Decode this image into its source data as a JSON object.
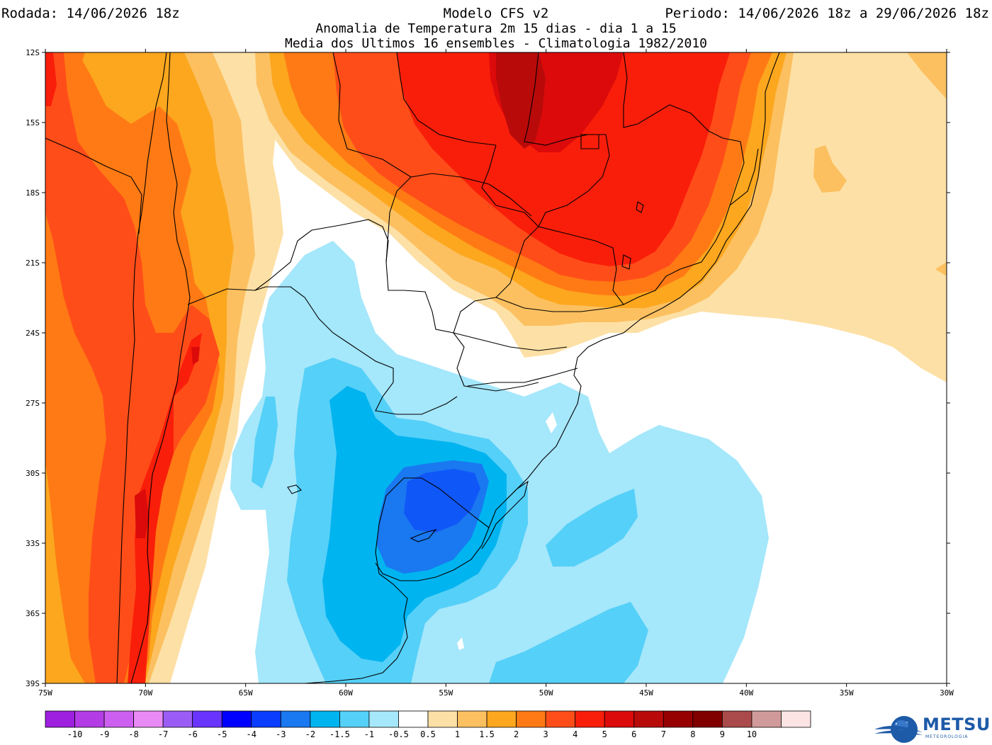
{
  "header": {
    "run": "Rodada: 14/06/2026 18z",
    "model": "Modelo CFS v2",
    "period": "Periodo: 14/06/2026 18z a 29/06/2026 18z",
    "subtitle1": "Anomalia de Temperatura 2m 15 dias - dia 1 a 15",
    "subtitle2": "Media dos Ultimos 16 ensembles - Climatologia 1982/2010"
  },
  "map": {
    "lat_ticks": [
      "12S",
      "15S",
      "18S",
      "21S",
      "24S",
      "27S",
      "30S",
      "33S",
      "36S",
      "39S"
    ],
    "lon_ticks": [
      "75W",
      "70W",
      "65W",
      "60W",
      "55W",
      "50W",
      "45W",
      "40W",
      "35W",
      "30W"
    ]
  },
  "colorbar": {
    "colors": [
      "#9e1fe0",
      "#b43ce6",
      "#cd5ff0",
      "#e88af5",
      "#9b5cf5",
      "#6a34ff",
      "#0000ff",
      "#0a3dff",
      "#1a78f0",
      "#00b4f0",
      "#55d0f8",
      "#a5e7fb",
      "#ffffff",
      "#fde0a5",
      "#fcc060",
      "#fca71e",
      "#ff7a14",
      "#ff4d19",
      "#f91e0a",
      "#dc0a0a",
      "#b90a0a",
      "#960000",
      "#800000",
      "#aa4a4a",
      "#d19a9a",
      "#fde4e4"
    ],
    "labels": [
      "-10",
      "-9",
      "-8",
      "-7",
      "-6",
      "-5",
      "-4",
      "-3",
      "-2",
      "-1.5",
      "-1",
      "-0.5",
      "0.5",
      "1",
      "1.5",
      "2",
      "3",
      "4",
      "5",
      "6",
      "7",
      "8",
      "9",
      "10"
    ]
  },
  "logo": {
    "name": "METSUL",
    "tagline": "METEOROLOGIA"
  }
}
